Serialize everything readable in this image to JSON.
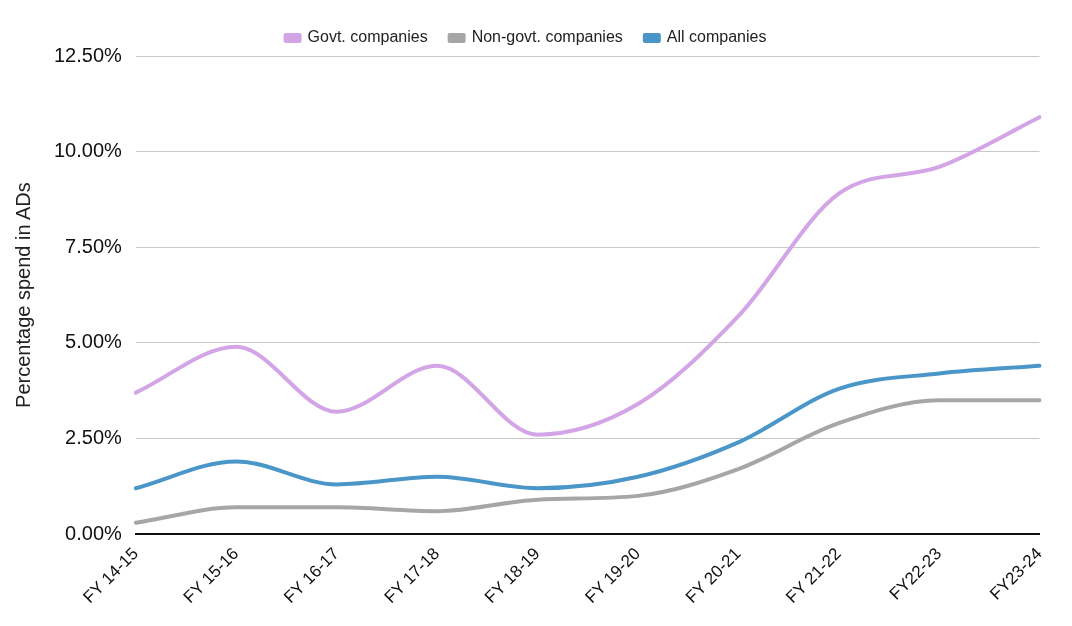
{
  "chart_data": {
    "type": "line",
    "ylabel": "Percentage spend in ADs",
    "categories": [
      "FY 14-15",
      "FY 15-16",
      "FY 16-17",
      "FY 17-18",
      "FY 18-19",
      "FY 19-20",
      "FY 20-21",
      "FY 21-22",
      "FY22-23",
      "FY23-24"
    ],
    "series": [
      {
        "name": "Govt. companies",
        "color": "#d4a5e6",
        "values": [
          3.7,
          4.9,
          3.2,
          4.4,
          2.6,
          3.4,
          5.7,
          8.9,
          9.6,
          10.9
        ]
      },
      {
        "name": "Non-govt. companies",
        "color": "#a6a6a6",
        "values": [
          0.3,
          0.7,
          0.7,
          0.6,
          0.9,
          1.0,
          1.7,
          2.9,
          3.5,
          3.5
        ]
      },
      {
        "name": "All companies",
        "color": "#4a96c9",
        "values": [
          1.2,
          1.9,
          1.3,
          1.5,
          1.2,
          1.5,
          2.4,
          3.8,
          4.2,
          4.4
        ]
      }
    ],
    "ylim": [
      0,
      12.5
    ],
    "yticks": [
      {
        "value": 0,
        "label": "0.00%"
      },
      {
        "value": 2.5,
        "label": "2.50%"
      },
      {
        "value": 5,
        "label": "5.00%"
      },
      {
        "value": 7.5,
        "label": "7.50%"
      },
      {
        "value": 10,
        "label": "10.00%"
      },
      {
        "value": 12.5,
        "label": "12.50%"
      }
    ],
    "grid": "y",
    "legend": "top",
    "marker": "none",
    "line_style": "solid"
  }
}
